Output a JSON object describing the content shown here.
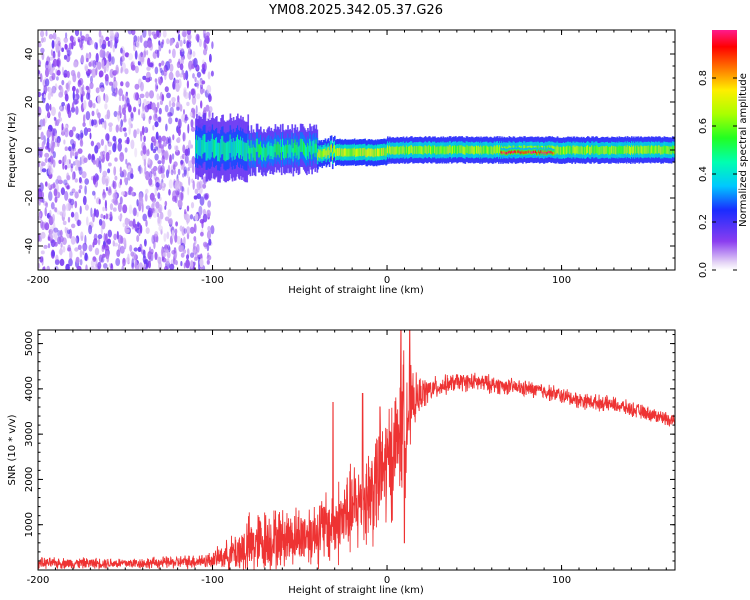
{
  "title": "YM08.2025.342.05.37.G26",
  "chart_data": [
    {
      "type": "heatmap",
      "name": "spectrogram",
      "xlabel": "Height of straight line (km)",
      "ylabel": "Frequency (Hz)",
      "xlim": [
        -200,
        165
      ],
      "ylim": [
        -50,
        50
      ],
      "xticks": [
        -200,
        -100,
        0,
        100
      ],
      "xtick_labels": [
        "-200",
        "-100",
        "0",
        "100"
      ],
      "yticks": [
        -40,
        -20,
        0,
        20,
        40
      ],
      "ytick_labels": [
        "-40",
        "-20",
        "0",
        "20",
        "40"
      ],
      "colorbar": {
        "label": "Normalized spectral amplitude",
        "range": [
          0,
          1
        ],
        "ticks": [
          0,
          0.2,
          0.4,
          0.6,
          0.8
        ],
        "tick_labels": [
          "0.0",
          "0.2",
          "0.4",
          "0.6",
          "0.8"
        ]
      },
      "features": [
        {
          "region": "noise",
          "x_range": [
            -200,
            -100
          ],
          "freq_range": [
            -50,
            50
          ],
          "amplitude": 0.1
        },
        {
          "region": "band",
          "x_range": [
            -110,
            -80
          ],
          "center_freq": 1,
          "half_width": 7,
          "amplitude": 0.45
        },
        {
          "region": "band",
          "x_range": [
            -80,
            -40
          ],
          "center_freq": 0,
          "half_width": 5,
          "amplitude": 0.5
        },
        {
          "region": "band",
          "x_range": [
            -40,
            0
          ],
          "center_freq": -1,
          "half_width": 3,
          "amplitude": 0.7
        },
        {
          "region": "band",
          "x_range": [
            0,
            165
          ],
          "center_freq": 0,
          "half_width": 3,
          "amplitude": 0.65
        },
        {
          "region": "peak",
          "x_range": [
            65,
            95
          ],
          "center_freq": -1,
          "half_width": 1,
          "amplitude": 0.95
        }
      ]
    },
    {
      "type": "line",
      "name": "snr",
      "xlabel": "Height of straight line (km)",
      "ylabel": "SNR (10 * v/v)",
      "xlim": [
        -200,
        165
      ],
      "ylim": [
        0,
        5300
      ],
      "xticks": [
        -200,
        -100,
        0,
        100
      ],
      "xtick_labels": [
        "-200",
        "-100",
        "0",
        "100"
      ],
      "yticks": [
        1000,
        2000,
        3000,
        4000,
        5000
      ],
      "ytick_labels": [
        "1000",
        "2000",
        "3000",
        "4000",
        "5000"
      ],
      "color": "#ee3333",
      "series": [
        {
          "name": "SNR",
          "x": [
            -200,
            -180,
            -160,
            -140,
            -120,
            -100,
            -90,
            -80,
            -70,
            -60,
            -50,
            -40,
            -30,
            -20,
            -10,
            0,
            5,
            10,
            15,
            20,
            30,
            40,
            50,
            60,
            70,
            80,
            90,
            100,
            110,
            120,
            130,
            140,
            150,
            165
          ],
          "y": [
            150,
            150,
            150,
            150,
            170,
            220,
            350,
            500,
            650,
            700,
            750,
            850,
            1000,
            1300,
            1700,
            2300,
            2800,
            3300,
            3700,
            3900,
            4050,
            4150,
            4150,
            4100,
            4050,
            4000,
            3950,
            3850,
            3750,
            3700,
            3650,
            3550,
            3450,
            3300
          ],
          "noise_amplitude": [
            120,
            120,
            120,
            120,
            140,
            180,
            350,
            700,
            700,
            650,
            650,
            750,
            900,
            1000,
            1200,
            1400,
            1200,
            1600,
            600,
            350,
            220,
            200,
            200,
            200,
            180,
            180,
            180,
            180,
            180,
            170,
            170,
            160,
            160,
            150
          ],
          "spikes": [
            {
              "x": 8,
              "y": 5300
            },
            {
              "x": 13,
              "y": 5300
            },
            {
              "x": -31,
              "y": 3700
            },
            {
              "x": -14,
              "y": 3900
            },
            {
              "x": -4,
              "y": 3600
            },
            {
              "x": 10,
              "y": 600
            },
            {
              "x": 3,
              "y": 1100
            }
          ]
        }
      ]
    }
  ]
}
